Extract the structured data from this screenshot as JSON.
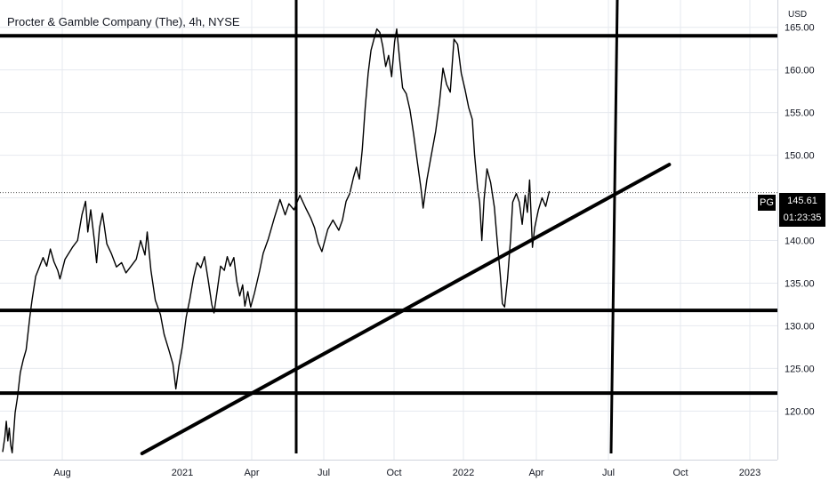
{
  "header": {
    "title": "Procter & Gamble Company (The), 4h, NYSE",
    "currency": "USD"
  },
  "badges": {
    "symbol": "PG",
    "last_price": "145.61",
    "countdown": "01:23:35"
  },
  "colors": {
    "price_line": "#000000",
    "drawings": "#000000",
    "grid": "#e6e9ef",
    "background": "#ffffff",
    "text": "#131722"
  },
  "chart_data": {
    "type": "line",
    "title": "Procter & Gamble Company (The), 4h, NYSE",
    "ylabel": "USD",
    "ylim": [
      114.3,
      168.2
    ],
    "x_ticks": [
      "Aug",
      "2021",
      "Apr",
      "Jul",
      "Oct",
      "2022",
      "Apr",
      "Jul",
      "Oct",
      "2023"
    ],
    "y_ticks": [
      "120.00",
      "125.00",
      "130.00",
      "135.00",
      "140.00",
      "145.00",
      "150.00",
      "155.00",
      "160.00",
      "165.00"
    ],
    "y_tick_values": [
      120,
      125,
      130,
      135,
      140,
      145,
      150,
      155,
      160,
      165
    ],
    "series": [
      {
        "values": [
          [
            0,
            115.2
          ],
          [
            0.03,
            117.0
          ],
          [
            0.05,
            118.8
          ],
          [
            0.07,
            116.5
          ],
          [
            0.09,
            118.0
          ],
          [
            0.11,
            116.0
          ],
          [
            0.13,
            115.1
          ],
          [
            0.15,
            117.5
          ],
          [
            0.17,
            119.8
          ],
          [
            0.2,
            121.5
          ],
          [
            0.24,
            124.5
          ],
          [
            0.28,
            126.0
          ],
          [
            0.32,
            127.2
          ],
          [
            0.37,
            131.0
          ],
          [
            0.4,
            133.0
          ],
          [
            0.45,
            135.8
          ],
          [
            0.5,
            136.9
          ],
          [
            0.55,
            138.0
          ],
          [
            0.6,
            137.0
          ],
          [
            0.65,
            139.0
          ],
          [
            0.7,
            137.5
          ],
          [
            0.75,
            136.5
          ],
          [
            0.78,
            135.5
          ],
          [
            0.85,
            137.8
          ],
          [
            0.95,
            139.2
          ],
          [
            1.02,
            140.0
          ],
          [
            1.08,
            143.0
          ],
          [
            1.13,
            144.6
          ],
          [
            1.16,
            141.0
          ],
          [
            1.2,
            143.6
          ],
          [
            1.25,
            140.0
          ],
          [
            1.28,
            137.4
          ],
          [
            1.32,
            141.5
          ],
          [
            1.36,
            143.2
          ],
          [
            1.42,
            139.6
          ],
          [
            1.48,
            138.5
          ],
          [
            1.55,
            136.9
          ],
          [
            1.62,
            137.4
          ],
          [
            1.68,
            136.2
          ],
          [
            1.75,
            137.0
          ],
          [
            1.82,
            137.8
          ],
          [
            1.88,
            140.0
          ],
          [
            1.94,
            138.3
          ],
          [
            1.97,
            141.0
          ],
          [
            2.02,
            136.5
          ],
          [
            2.08,
            133.0
          ],
          [
            2.15,
            131.3
          ],
          [
            2.2,
            129.0
          ],
          [
            2.27,
            127.0
          ],
          [
            2.32,
            125.5
          ],
          [
            2.36,
            122.6
          ],
          [
            2.4,
            125.2
          ],
          [
            2.45,
            127.6
          ],
          [
            2.5,
            131.0
          ],
          [
            2.55,
            133.1
          ],
          [
            2.6,
            135.6
          ],
          [
            2.65,
            137.4
          ],
          [
            2.7,
            136.8
          ],
          [
            2.75,
            138.1
          ],
          [
            2.8,
            135.4
          ],
          [
            2.85,
            132.5
          ],
          [
            2.88,
            131.5
          ],
          [
            2.93,
            134.5
          ],
          [
            2.97,
            137.0
          ],
          [
            3.02,
            136.5
          ],
          [
            3.06,
            138.1
          ],
          [
            3.1,
            137.0
          ],
          [
            3.15,
            138.0
          ],
          [
            3.19,
            135.2
          ],
          [
            3.23,
            133.5
          ],
          [
            3.27,
            134.8
          ],
          [
            3.3,
            132.3
          ],
          [
            3.34,
            134.0
          ],
          [
            3.38,
            132.2
          ],
          [
            3.43,
            133.8
          ],
          [
            3.5,
            136.4
          ],
          [
            3.55,
            138.5
          ],
          [
            3.62,
            140.2
          ],
          [
            3.7,
            142.6
          ],
          [
            3.78,
            144.8
          ],
          [
            3.85,
            143.0
          ],
          [
            3.9,
            144.3
          ],
          [
            3.97,
            143.6
          ],
          [
            4.05,
            145.3
          ],
          [
            4.13,
            143.8
          ],
          [
            4.2,
            142.6
          ],
          [
            4.25,
            141.5
          ],
          [
            4.3,
            139.7
          ],
          [
            4.35,
            138.7
          ],
          [
            4.43,
            141.3
          ],
          [
            4.5,
            142.4
          ],
          [
            4.58,
            141.2
          ],
          [
            4.63,
            142.4
          ],
          [
            4.68,
            144.6
          ],
          [
            4.73,
            145.5
          ],
          [
            4.78,
            147.4
          ],
          [
            4.82,
            148.6
          ],
          [
            4.86,
            147.2
          ],
          [
            4.9,
            150.7
          ],
          [
            4.94,
            155.6
          ],
          [
            4.98,
            159.6
          ],
          [
            5.02,
            162.3
          ],
          [
            5.06,
            163.6
          ],
          [
            5.1,
            164.8
          ],
          [
            5.14,
            164.4
          ],
          [
            5.18,
            162.8
          ],
          [
            5.22,
            160.4
          ],
          [
            5.26,
            161.7
          ],
          [
            5.3,
            159.2
          ],
          [
            5.34,
            163.3
          ],
          [
            5.37,
            164.8
          ],
          [
            5.41,
            161.2
          ],
          [
            5.45,
            157.9
          ],
          [
            5.5,
            157.2
          ],
          [
            5.55,
            155.3
          ],
          [
            5.6,
            152.5
          ],
          [
            5.65,
            149.3
          ],
          [
            5.7,
            146.1
          ],
          [
            5.73,
            143.8
          ],
          [
            5.78,
            147.1
          ],
          [
            5.83,
            149.5
          ],
          [
            5.9,
            152.8
          ],
          [
            5.95,
            156.0
          ],
          [
            6.0,
            160.2
          ],
          [
            6.05,
            158.3
          ],
          [
            6.1,
            157.4
          ],
          [
            6.15,
            163.6
          ],
          [
            6.2,
            163.0
          ],
          [
            6.25,
            159.6
          ],
          [
            6.3,
            157.7
          ],
          [
            6.35,
            155.6
          ],
          [
            6.4,
            154.2
          ],
          [
            6.43,
            150.1
          ],
          [
            6.47,
            146.3
          ],
          [
            6.5,
            144.4
          ],
          [
            6.53,
            140.0
          ],
          [
            6.56,
            144.8
          ],
          [
            6.6,
            148.4
          ],
          [
            6.65,
            146.8
          ],
          [
            6.7,
            143.9
          ],
          [
            6.74,
            139.8
          ],
          [
            6.78,
            136.0
          ],
          [
            6.81,
            132.6
          ],
          [
            6.84,
            132.2
          ],
          [
            6.88,
            135.5
          ],
          [
            6.92,
            140.0
          ],
          [
            6.95,
            144.5
          ],
          [
            7.0,
            145.5
          ],
          [
            7.04,
            144.5
          ],
          [
            7.08,
            141.9
          ],
          [
            7.12,
            145.3
          ],
          [
            7.15,
            143.3
          ],
          [
            7.18,
            147.1
          ],
          [
            7.22,
            139.2
          ],
          [
            7.25,
            141.5
          ],
          [
            7.3,
            143.6
          ],
          [
            7.35,
            145.0
          ],
          [
            7.4,
            144.0
          ],
          [
            7.45,
            145.8
          ]
        ]
      }
    ],
    "drawings": {
      "horizontal_lines": [
        164.0,
        131.8,
        122.1
      ],
      "vertical_lines_at": [
        "Jun 2021",
        "Jul 2022"
      ],
      "trendline": [
        [
          1.9,
          114.3
        ],
        [
          8.95,
          148.9
        ]
      ],
      "last_price_line": 145.61
    }
  }
}
